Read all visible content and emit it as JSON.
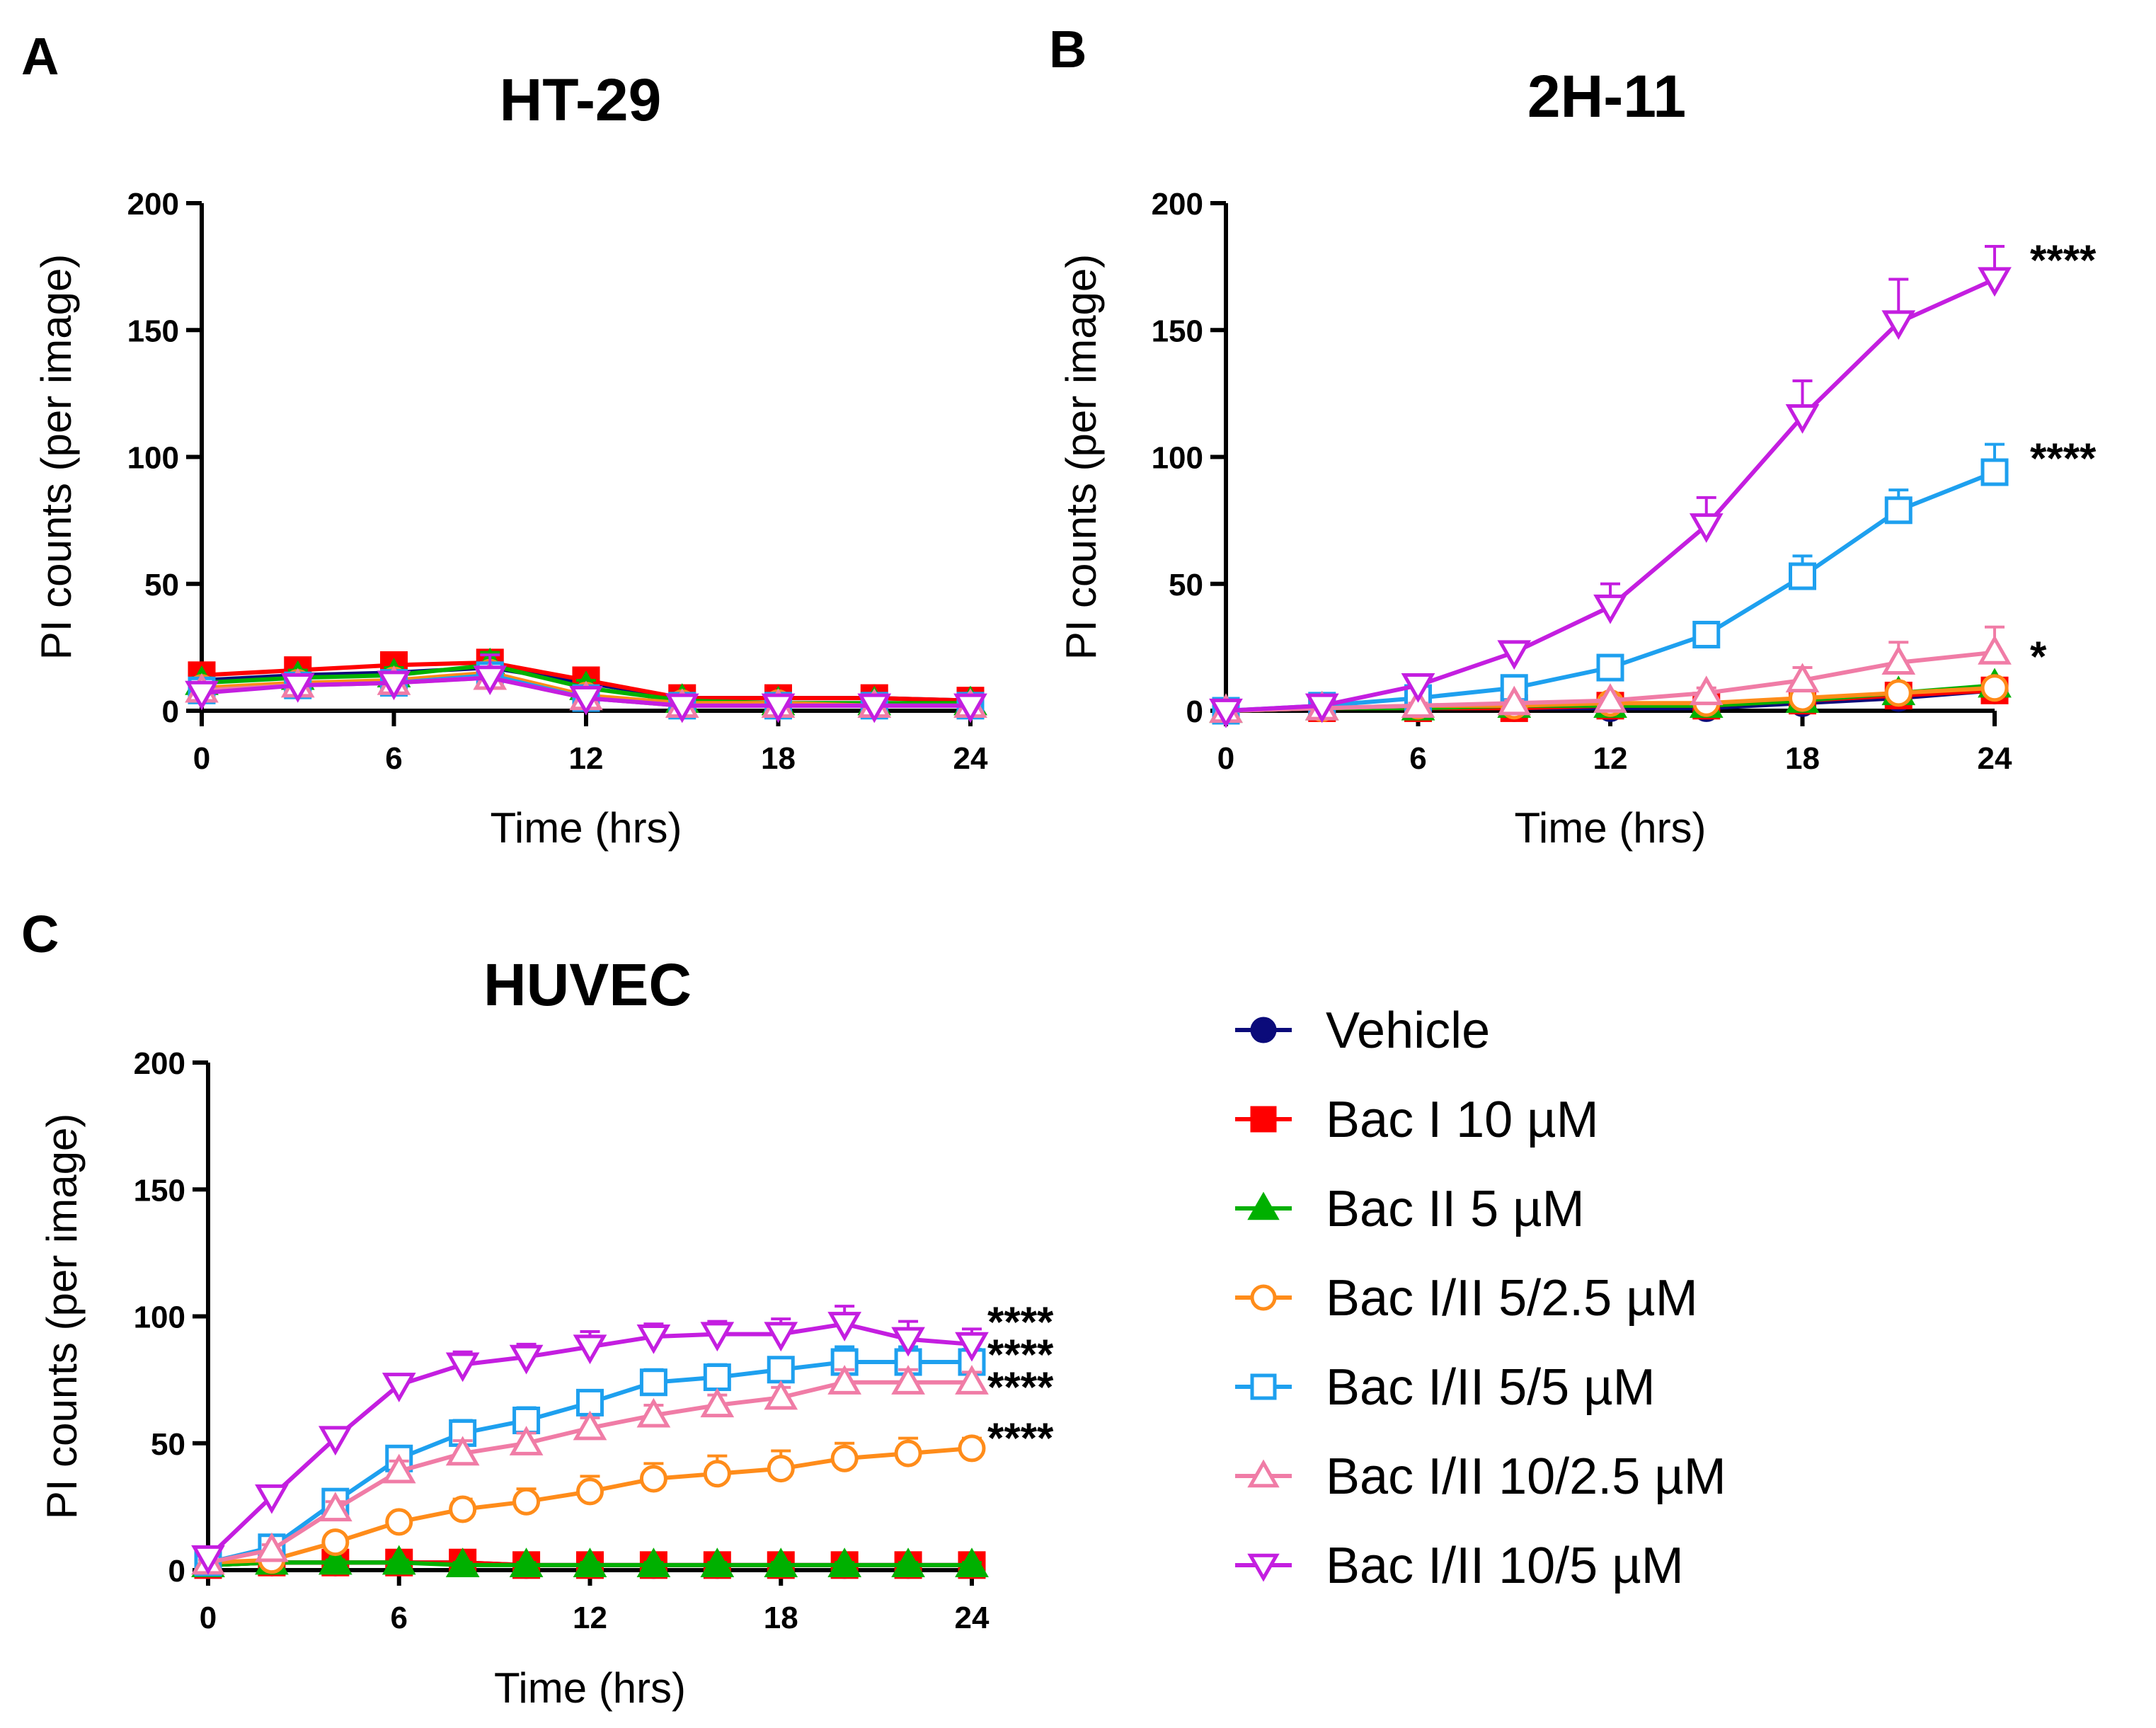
{
  "series_styles": [
    {
      "name": "Vehicle",
      "color": "#0b0b7a",
      "marker": "circle",
      "fill": "filled"
    },
    {
      "name": "Bac I 10 µM",
      "color": "#ff0000",
      "marker": "square",
      "fill": "filled"
    },
    {
      "name": "Bac II 5 µM",
      "color": "#00b000",
      "marker": "triangle-up",
      "fill": "filled"
    },
    {
      "name": "Bac I/II 5/2.5 µM",
      "color": "#ff8c1a",
      "marker": "circle",
      "fill": "open"
    },
    {
      "name": "Bac I/II 5/5 µM",
      "color": "#1ea0ef",
      "marker": "square",
      "fill": "open"
    },
    {
      "name": "Bac I/II 10/2.5 µM",
      "color": "#f07ca6",
      "marker": "triangle-up",
      "fill": "open"
    },
    {
      "name": "Bac I/II 10/5 µM",
      "color": "#c41ee0",
      "marker": "triangle-down",
      "fill": "open"
    }
  ],
  "legend": {
    "items": [
      "Vehicle",
      "Bac I 10 µM",
      "Bac II 5 µM",
      "Bac I/II 5/2.5 µM",
      "Bac I/II 5/5 µM",
      "Bac I/II 10/2.5 µM",
      "Bac I/II 10/5 µM"
    ]
  },
  "chart_data": [
    {
      "panel": "A",
      "type": "line",
      "title": "HT-29",
      "xlabel": "Time (hrs)",
      "ylabel": "PI counts (per image)",
      "xlim": [
        0,
        24
      ],
      "ylim": [
        0,
        200
      ],
      "xticks": [
        0,
        6,
        12,
        18,
        24
      ],
      "yticks": [
        0,
        50,
        100,
        150,
        200
      ],
      "x": [
        0,
        3,
        6,
        9,
        12,
        15,
        18,
        21,
        24
      ],
      "series": [
        {
          "name": "Vehicle",
          "values": [
            12,
            14,
            15,
            17,
            11,
            5,
            5,
            5,
            4
          ],
          "err": [
            2,
            3,
            3,
            3,
            3,
            1,
            1,
            1,
            1
          ]
        },
        {
          "name": "Bac I 10 µM",
          "values": [
            14,
            16,
            18,
            19,
            12,
            5,
            5,
            5,
            4
          ],
          "err": [
            3,
            3,
            4,
            4,
            3,
            1,
            1,
            1,
            1
          ]
        },
        {
          "name": "Bac II 5 µM",
          "values": [
            11,
            13,
            14,
            18,
            9,
            4,
            3,
            3,
            3
          ],
          "err": [
            2,
            3,
            3,
            5,
            3,
            1,
            1,
            1,
            1
          ]
        },
        {
          "name": "Bac I/II 5/2.5 µM",
          "values": [
            9,
            11,
            12,
            15,
            6,
            3,
            3,
            2,
            2
          ],
          "err": [
            2,
            2,
            3,
            4,
            2,
            1,
            1,
            1,
            1
          ]
        },
        {
          "name": "Bac I/II 5/5 µM",
          "values": [
            8,
            10,
            11,
            14,
            5,
            2,
            2,
            2,
            2
          ],
          "err": [
            2,
            2,
            3,
            4,
            2,
            1,
            1,
            1,
            1
          ]
        },
        {
          "name": "Bac I/II 10/2.5 µM",
          "values": [
            8,
            10,
            11,
            13,
            5,
            2,
            2,
            2,
            2
          ],
          "err": [
            2,
            2,
            3,
            4,
            2,
            1,
            1,
            1,
            1
          ]
        },
        {
          "name": "Bac I/II 10/5 µM",
          "values": [
            7,
            10,
            11,
            13,
            5,
            2,
            2,
            2,
            2
          ],
          "err": [
            2,
            2,
            3,
            9,
            2,
            1,
            1,
            1,
            1
          ]
        }
      ],
      "annotations": []
    },
    {
      "panel": "B",
      "type": "line",
      "title": "2H-11",
      "xlabel": "Time (hrs)",
      "ylabel": "PI counts (per image)",
      "xlim": [
        0,
        24
      ],
      "ylim": [
        0,
        200
      ],
      "xticks": [
        0,
        6,
        12,
        18,
        24
      ],
      "yticks": [
        0,
        50,
        100,
        150,
        200
      ],
      "x": [
        0,
        3,
        6,
        9,
        12,
        15,
        18,
        21,
        24
      ],
      "series": [
        {
          "name": "Vehicle",
          "values": [
            0,
            1,
            1,
            1,
            1,
            1,
            3,
            5,
            8
          ],
          "err": [
            0,
            0,
            0,
            0,
            0,
            0,
            1,
            1,
            2
          ]
        },
        {
          "name": "Bac I 10 µM",
          "values": [
            0,
            1,
            1,
            1,
            2,
            2,
            4,
            6,
            8
          ],
          "err": [
            0,
            0,
            0,
            0,
            0,
            0,
            1,
            1,
            2
          ]
        },
        {
          "name": "Bac II 5 µM",
          "values": [
            0,
            1,
            1,
            2,
            2,
            2,
            4,
            7,
            10
          ],
          "err": [
            0,
            0,
            0,
            0,
            0,
            1,
            1,
            1,
            2
          ]
        },
        {
          "name": "Bac I/II 5/2.5 µM",
          "values": [
            0,
            1,
            2,
            2,
            3,
            3,
            5,
            7,
            9
          ],
          "err": [
            0,
            0,
            0,
            1,
            1,
            1,
            1,
            1,
            2
          ]
        },
        {
          "name": "Bac I/II 5/5 µM",
          "values": [
            0,
            2,
            5,
            9,
            17,
            30,
            53,
            79,
            94
          ],
          "err": [
            0,
            1,
            1,
            2,
            3,
            4,
            8,
            8,
            11
          ]
        },
        {
          "name": "Bac I/II 10/2.5 µM",
          "values": [
            0,
            1,
            2,
            3,
            4,
            7,
            12,
            19,
            23
          ],
          "err": [
            0,
            0,
            1,
            1,
            1,
            2,
            5,
            8,
            10
          ]
        },
        {
          "name": "Bac I/II 10/5 µM",
          "values": [
            0,
            2,
            10,
            23,
            41,
            73,
            116,
            153,
            170
          ],
          "err": [
            0,
            1,
            3,
            4,
            9,
            11,
            14,
            17,
            13
          ]
        }
      ],
      "annotations": [
        {
          "series": "Bac I/II 10/5 µM",
          "text": "****"
        },
        {
          "series": "Bac I/II 5/5 µM",
          "text": "****"
        },
        {
          "series": "Bac I/II 10/2.5 µM",
          "text": "*"
        }
      ]
    },
    {
      "panel": "C",
      "type": "line",
      "title": "HUVEC",
      "xlabel": "Time (hrs)",
      "ylabel": "PI counts (per image)",
      "xlim": [
        0,
        24
      ],
      "ylim": [
        0,
        200
      ],
      "xticks": [
        0,
        6,
        12,
        18,
        24
      ],
      "yticks": [
        0,
        50,
        100,
        150,
        200
      ],
      "x": [
        0,
        2,
        4,
        6,
        8,
        10,
        12,
        14,
        16,
        18,
        20,
        22,
        24
      ],
      "series": [
        {
          "name": "Vehicle",
          "values": [
            2,
            3,
            3,
            3,
            3,
            2,
            2,
            2,
            2,
            2,
            2,
            2,
            2
          ],
          "err": [
            1,
            1,
            1,
            1,
            1,
            1,
            1,
            1,
            1,
            1,
            1,
            1,
            1
          ]
        },
        {
          "name": "Bac I 10 µM",
          "values": [
            2,
            3,
            3,
            3,
            3,
            2,
            2,
            2,
            2,
            2,
            2,
            2,
            2
          ],
          "err": [
            1,
            1,
            1,
            1,
            1,
            1,
            1,
            1,
            1,
            1,
            1,
            1,
            1
          ]
        },
        {
          "name": "Bac II 5 µM",
          "values": [
            2,
            3,
            3,
            3,
            2,
            2,
            2,
            2,
            2,
            2,
            2,
            2,
            2
          ],
          "err": [
            1,
            1,
            1,
            1,
            1,
            1,
            1,
            1,
            1,
            1,
            1,
            1,
            1
          ]
        },
        {
          "name": "Bac I/II 5/2.5 µM",
          "values": [
            3,
            4,
            11,
            19,
            24,
            27,
            31,
            36,
            38,
            40,
            44,
            46,
            48
          ],
          "err": [
            1,
            1,
            2,
            3,
            4,
            5,
            6,
            6,
            7,
            7,
            6,
            6,
            4
          ]
        },
        {
          "name": "Bac I/II 5/5 µM",
          "values": [
            3,
            9,
            27,
            44,
            54,
            59,
            66,
            74,
            76,
            79,
            82,
            82,
            82
          ],
          "err": [
            1,
            2,
            3,
            4,
            5,
            5,
            4,
            5,
            5,
            4,
            6,
            6,
            5
          ]
        },
        {
          "name": "Bac I/II 10/2.5 µM",
          "values": [
            3,
            8,
            24,
            39,
            46,
            50,
            56,
            61,
            65,
            68,
            74,
            74,
            74
          ],
          "err": [
            1,
            2,
            3,
            4,
            5,
            4,
            4,
            4,
            4,
            4,
            5,
            5,
            4
          ]
        },
        {
          "name": "Bac I/II 10/5 µM",
          "values": [
            5,
            29,
            52,
            73,
            81,
            84,
            88,
            92,
            93,
            93,
            97,
            91,
            89
          ],
          "err": [
            1,
            3,
            4,
            4,
            5,
            5,
            6,
            5,
            5,
            6,
            7,
            7,
            6
          ]
        }
      ],
      "annotations": [
        {
          "series": "Bac I/II 10/5 µM",
          "text": "****"
        },
        {
          "series": "Bac I/II 5/5 µM",
          "text": "****"
        },
        {
          "series": "Bac I/II 10/2.5 µM",
          "text": "****"
        },
        {
          "series": "Bac I/II 5/2.5 µM",
          "text": "****"
        }
      ]
    }
  ]
}
